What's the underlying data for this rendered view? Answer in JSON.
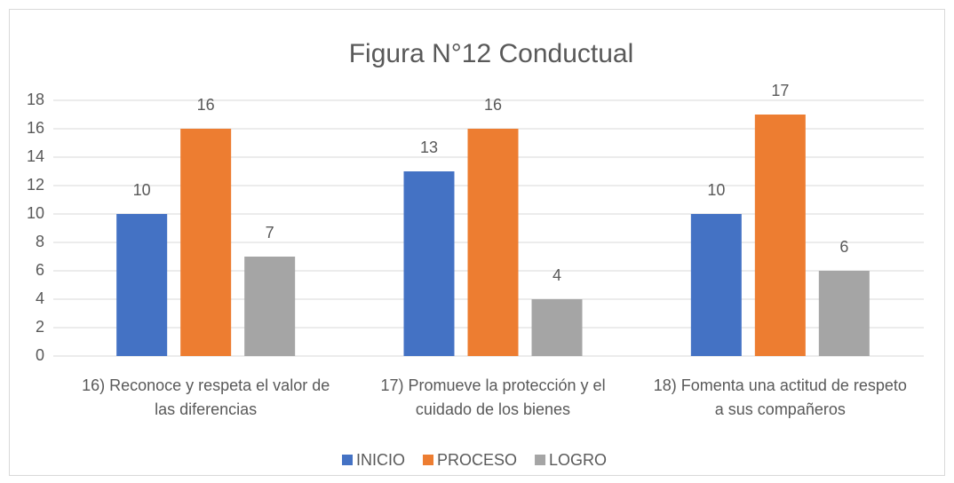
{
  "chart_data": {
    "type": "bar",
    "title": "Figura N°12 Conductual",
    "categories": [
      "16) Reconoce y respeta el valor de las diferencias",
      "17) Promueve la protección y el cuidado de los bienes",
      "18) Fomenta una actitud de respeto a sus compañeros"
    ],
    "series": [
      {
        "name": "INICIO",
        "color": "#4472c4",
        "values": [
          10,
          13,
          10
        ]
      },
      {
        "name": "PROCESO",
        "color": "#ed7d31",
        "values": [
          16,
          16,
          17
        ]
      },
      {
        "name": "LOGRO",
        "color": "#a5a5a5",
        "values": [
          7,
          4,
          6
        ]
      }
    ],
    "ylim": [
      0,
      18
    ],
    "yticks": [
      0,
      2,
      4,
      6,
      8,
      10,
      12,
      14,
      16,
      18
    ],
    "grid": true,
    "legend": "bottom"
  }
}
